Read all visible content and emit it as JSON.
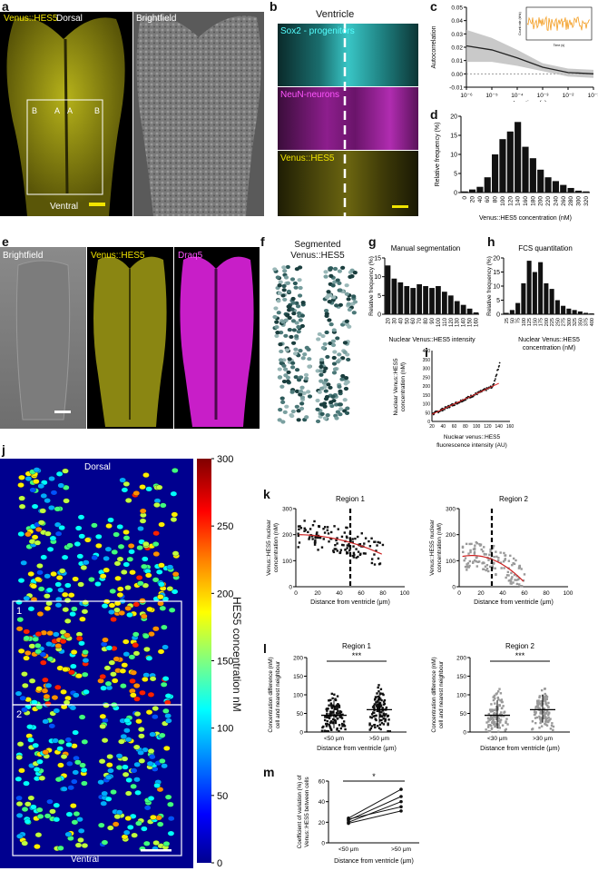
{
  "panels": {
    "a": {
      "letter": "a",
      "venus": "Venus::HES5",
      "dorsal": "Dorsal",
      "brightfield": "Brightfield",
      "ventral": "Ventral",
      "regions": [
        "B",
        "A",
        "A",
        "B"
      ]
    },
    "b": {
      "letter": "b",
      "title": "Ventricle",
      "labels": [
        "Sox2 - progenitors",
        "NeuN-neurons",
        "Venus::HES5"
      ]
    },
    "c": {
      "letter": "c",
      "ylabel": "Autocorrelation",
      "xlabel": "Lag time (s)",
      "yticks": [
        "0.05",
        "0.04",
        "0.03",
        "0.02",
        "0.01",
        "0.00",
        "-0.01"
      ],
      "xticks": [
        "10⁻⁶",
        "10⁻⁵",
        "10⁻⁴",
        "10⁻³",
        "10⁻²",
        "10⁻¹"
      ],
      "inset": {
        "ylabel": "Count rate (kHz)",
        "xlabel": "Time (s)"
      }
    },
    "d": {
      "letter": "d",
      "ylabel": "Relative frequency (%)",
      "xlabel": "Venus::HES5 concentration (nM)",
      "yticks": [
        "20",
        "15",
        "10",
        "5",
        "0"
      ]
    },
    "e": {
      "letter": "e",
      "labels": [
        "Brightfield",
        "Venus::HES5",
        "Draq5"
      ]
    },
    "f": {
      "letter": "f",
      "title1": "Segmented",
      "title2": "Venus::HES5"
    },
    "g": {
      "letter": "g",
      "title": "Manual segmentation",
      "ylabel": "Relative frequency (%)",
      "xlabel": "Nuclear Venus::HES5 intensity",
      "yticks": [
        "15",
        "10",
        "5",
        "0"
      ]
    },
    "h": {
      "letter": "h",
      "title": "FCS quantitation",
      "ylabel": "Relative frequency (%)",
      "xlabel1": "Nuclear Venus::HES5",
      "xlabel2": "concentration (nM)",
      "yticks": [
        "20",
        "15",
        "10",
        "5",
        "0"
      ]
    },
    "i": {
      "letter": "i",
      "ylabel1": "Nuclear Venus::HES5",
      "ylabel2": "concentration (nM)",
      "xlabel1": "Nuclear venus::HES5",
      "xlabel2": "fluorescence intensity (AU)",
      "yticks": [
        "400",
        "350",
        "300",
        "250",
        "200",
        "150",
        "100",
        "50",
        "0"
      ],
      "xticks": [
        "20",
        "40",
        "60",
        "80",
        "100",
        "120",
        "140",
        "160"
      ]
    },
    "j": {
      "letter": "j",
      "dorsal": "Dorsal",
      "ventral": "Ventral",
      "box1": "1",
      "box2": "2",
      "cbar_label": "HES5 concentration nM",
      "cbar_ticks": [
        "300",
        "250",
        "200",
        "150",
        "100",
        "50",
        "0"
      ]
    },
    "k": {
      "letter": "k",
      "r1": "Region 1",
      "r2": "Region 2",
      "ylabel1": "Venus::HES5 nuclear",
      "ylabel2": "concentration (nM)",
      "xlabel": "Distance from ventricle (μm)",
      "yticks": [
        "300",
        "200",
        "100",
        "0"
      ],
      "xticks": [
        "0",
        "20",
        "40",
        "60",
        "80",
        "100"
      ]
    },
    "l": {
      "letter": "l",
      "r1": "Region 1",
      "r2": "Region 2",
      "sig": "***",
      "ylabel1": "Concentration difference (nM)",
      "ylabel2": "cell and nearest neighbour",
      "xlabel": "Distance from ventricle (μm)",
      "yticks": [
        "200",
        "150",
        "100",
        "50",
        "0"
      ],
      "cats1": [
        "<50 μm",
        ">50 μm"
      ],
      "cats2": [
        "<30 μm",
        ">30 μm"
      ]
    },
    "m": {
      "letter": "m",
      "sig": "*",
      "ylabel1": "Coefficient of variation (%) of",
      "ylabel2": "Venus::HES5 between cells",
      "xlabel": "Distance from ventricle (μm)",
      "yticks": [
        "60",
        "40",
        "20",
        "0"
      ],
      "cats": [
        "<50 μm",
        ">50 μm"
      ]
    }
  },
  "chart_data": [
    {
      "type": "bar",
      "id": "d",
      "ylabel": "Relative frequency (%)",
      "xlabel": "Venus::HES5 concentration (nM)",
      "ylim": [
        0,
        20
      ],
      "categories": [
        "0",
        "20",
        "40",
        "60",
        "80",
        "100",
        "120",
        "140",
        "160",
        "180",
        "200",
        "220",
        "240",
        "260",
        "280",
        "300",
        "320"
      ],
      "values": [
        0.3,
        0.8,
        1.5,
        4,
        10,
        14,
        16,
        18.5,
        12,
        9,
        6,
        4,
        3,
        2,
        1.2,
        0.5,
        0.3
      ]
    },
    {
      "type": "bar",
      "id": "g",
      "title": "Manual segmentation",
      "ylabel": "Relative frequency (%)",
      "xlabel": "Nuclear Venus::HES5 intensity",
      "ylim": [
        0,
        15
      ],
      "categories": [
        "20",
        "30",
        "40",
        "50",
        "60",
        "70",
        "80",
        "90",
        "100",
        "110",
        "120",
        "130",
        "140",
        "150",
        "160"
      ],
      "values": [
        13,
        9.5,
        8.5,
        7.5,
        7,
        8,
        7.5,
        7,
        7.5,
        6,
        5,
        3.5,
        2.5,
        1.5,
        0.5
      ]
    },
    {
      "type": "bar",
      "id": "h",
      "title": "FCS quantitation",
      "ylabel": "Relative frequency (%)",
      "ylim": [
        0,
        20
      ],
      "categories": [
        "25",
        "50",
        "75",
        "100",
        "125",
        "150",
        "175",
        "200",
        "225",
        "250",
        "275",
        "300",
        "325",
        "350",
        "375",
        "400"
      ],
      "values": [
        0.5,
        1.5,
        4,
        11,
        19,
        15,
        18.5,
        11,
        9,
        5,
        3,
        2,
        1.5,
        1,
        0.5,
        0.3
      ]
    },
    {
      "type": "line",
      "id": "c",
      "ylabel": "Autocorrelation",
      "xlabel": "Lag time (s)",
      "ylim": [
        -0.01,
        0.05
      ],
      "x": [
        1e-06,
        1e-05,
        0.0001,
        0.001,
        0.01,
        0.1
      ],
      "y": [
        0.021,
        0.018,
        0.012,
        0.005,
        0.001,
        0.0
      ]
    },
    {
      "type": "scatter",
      "id": "k1",
      "title": "Region 1",
      "ylabel": "Venus::HES5 nuclear concentration (nM)",
      "xlabel": "Distance from ventricle (μm)",
      "xlim": [
        0,
        100
      ],
      "ylim": [
        0,
        300
      ],
      "threshold": 50
    },
    {
      "type": "scatter",
      "id": "k2",
      "title": "Region 2",
      "ylabel": "Venus::HES5 nuclear concentration (nM)",
      "xlabel": "Distance from ventricle (μm)",
      "xlim": [
        0,
        100
      ],
      "ylim": [
        0,
        300
      ],
      "threshold": 30
    },
    {
      "type": "line",
      "id": "m",
      "ylabel": "Coefficient of variation (%) of Venus::HES5 between cells",
      "xlabel": "Distance from ventricle (μm)",
      "categories": [
        "<50 μm",
        ">50 μm"
      ],
      "ylim": [
        0,
        60
      ],
      "series": [
        {
          "values": [
            24,
            52
          ]
        },
        {
          "values": [
            22,
            45
          ]
        },
        {
          "values": [
            20,
            40
          ]
        },
        {
          "values": [
            23,
            35
          ]
        },
        {
          "values": [
            19,
            31
          ]
        }
      ]
    }
  ]
}
